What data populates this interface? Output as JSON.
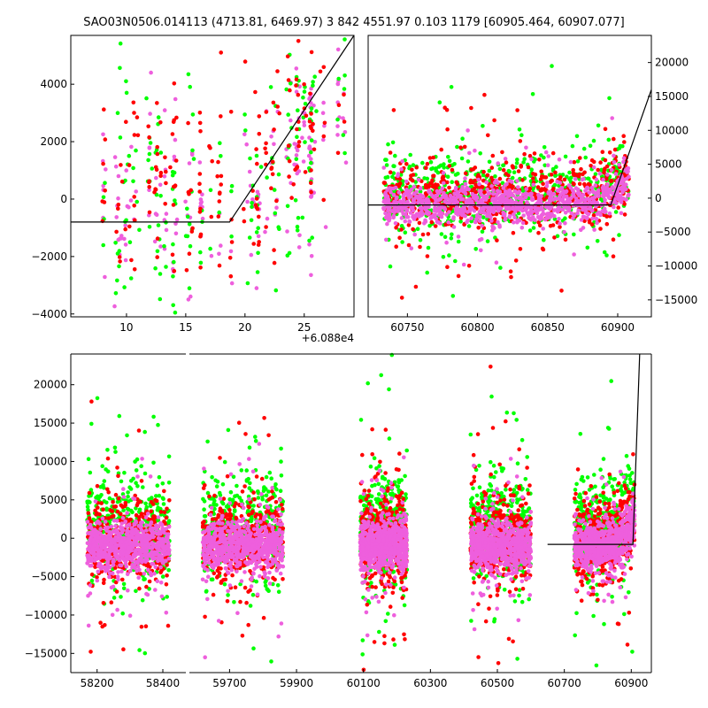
{
  "title": "SAO03N0506.014113 (4713.81, 6469.97)   3 842 4551.97 0.103 1179 [60905.464, 60907.077]",
  "colors": {
    "green": "#00ff00",
    "red": "#ff0000",
    "pink": "#ee5fdd",
    "model": "#000000"
  },
  "chart_data": [
    {
      "type": "scatter",
      "panel": "top-left",
      "xlim": [
        60885.3,
        60909.2
      ],
      "ylim": [
        -4100,
        5700
      ],
      "x_offset_label": "+6.088e4",
      "xticks": [
        10,
        15,
        20,
        25
      ],
      "yticks": [
        -4000,
        -2000,
        0,
        2000,
        4000
      ],
      "model": {
        "x": [
          60885.3,
          60898.7,
          60909.2
        ],
        "y": [
          -800,
          -800,
          5700
        ]
      },
      "series": [
        {
          "color": "green",
          "x_range": [
            60885.3,
            60908.5
          ],
          "y_center": 300,
          "y_spread": 1800
        },
        {
          "color": "red",
          "x_range": [
            60885.3,
            60908.5
          ],
          "y_center": 400,
          "y_spread": 1700
        },
        {
          "color": "pink",
          "x_range": [
            60885.3,
            60908.5
          ],
          "y_center": -400,
          "y_spread": 1500
        }
      ]
    },
    {
      "type": "scatter",
      "panel": "top-right",
      "xlim": [
        60722,
        60924
      ],
      "ylim": [
        -17500,
        24000
      ],
      "xticks": [
        60750,
        60800,
        60850,
        60900
      ],
      "yticks": [
        -15000,
        -10000,
        -5000,
        0,
        5000,
        10000,
        15000,
        20000
      ],
      "model": {
        "x": [
          60722,
          60895,
          60924
        ],
        "y": [
          -1000,
          -1000,
          16000
        ]
      },
      "series": [
        {
          "color": "green",
          "x_range": [
            60733,
            60908
          ],
          "y_center": 500,
          "y_spread": 2600
        },
        {
          "color": "red",
          "x_range": [
            60733,
            60908
          ],
          "y_center": 200,
          "y_spread": 2300
        },
        {
          "color": "pink",
          "x_range": [
            60733,
            60908
          ],
          "y_center": -900,
          "y_spread": 1400
        }
      ]
    },
    {
      "type": "scatter",
      "panel": "bottom",
      "ylim": [
        -17500,
        24000
      ],
      "xticks": [
        58200,
        58400,
        59700,
        59900,
        60100,
        60300,
        60500,
        60700,
        60900
      ],
      "yticks": [
        -15000,
        -10000,
        -5000,
        0,
        5000,
        10000,
        15000,
        20000
      ],
      "segments": [
        {
          "xlim": [
            58120,
            58470
          ],
          "clusters": [
            [
              58170,
              58420
            ]
          ]
        },
        {
          "xlim": [
            59580,
            60960
          ],
          "clusters": [
            [
              59620,
              59860
            ],
            [
              60090,
              60230
            ],
            [
              60420,
              60600
            ],
            [
              60730,
              60910
            ]
          ]
        }
      ],
      "model": {
        "x": [
          60650,
          60905,
          60925
        ],
        "y": [
          -800,
          -800,
          24000
        ]
      }
    }
  ]
}
